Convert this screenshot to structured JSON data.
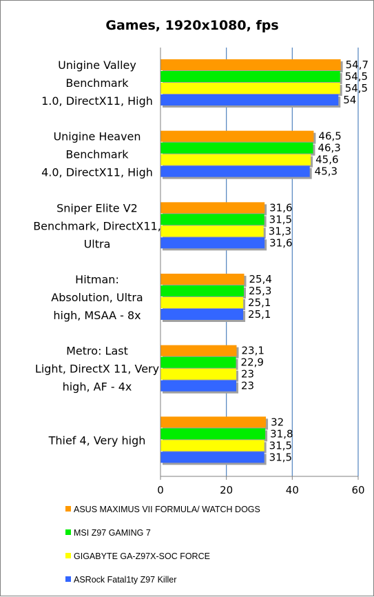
{
  "chart_data": {
    "type": "bar",
    "orientation": "horizontal",
    "title": "Games, 1920x1080, fps",
    "categories": [
      [
        "Unigine Valley",
        "Benchmark",
        "1.0, DirectX11, High"
      ],
      [
        "Unigine Heaven",
        "Benchmark",
        "4.0, DirectX11, High"
      ],
      [
        "Sniper Elite V2",
        "Benchmark, DirectX11,",
        "Ultra"
      ],
      [
        "Hitman:",
        "Absolution, Ultra",
        "high, MSAA - 8x"
      ],
      [
        "Metro: Last",
        "Light, DirectX 11, Very",
        "high, AF - 4x"
      ],
      [
        "Thief 4, Very high"
      ]
    ],
    "series": [
      {
        "name": "ASUS MAXIMUS VII FORMULA/ WATCH DOGS",
        "color": "#ff9900",
        "values": [
          54.7,
          46.5,
          31.6,
          25.4,
          23.1,
          32
        ],
        "labels": [
          "54,7",
          "46,5",
          "31,6",
          "25,4",
          "23,1",
          "32"
        ]
      },
      {
        "name": "MSI Z97 GAMING 7",
        "color": "#00ee00",
        "values": [
          54.5,
          46.3,
          31.5,
          25.3,
          22.9,
          31.8
        ],
        "labels": [
          "54,5",
          "46,3",
          "31,5",
          "25,3",
          "22,9",
          "31,8"
        ]
      },
      {
        "name": "GIGABYTE GA-Z97X-SOC FORCE",
        "color": "#ffff00",
        "values": [
          54.5,
          45.6,
          31.3,
          25.1,
          23,
          31.5
        ],
        "labels": [
          "54,5",
          "45,6",
          "31,3",
          "25,1",
          "23",
          "31,5"
        ]
      },
      {
        "name": "ASRock Fatal1ty Z97 Killer",
        "color": "#3366ff",
        "values": [
          54,
          45.3,
          31.6,
          25.1,
          23,
          31.5
        ],
        "labels": [
          "54",
          "45,3",
          "31,6",
          "25,1",
          "23",
          "31,5"
        ]
      }
    ],
    "xlim": [
      0,
      60
    ],
    "xticks": [
      "0",
      "20",
      "40",
      "60"
    ],
    "grid": true,
    "legend_position": "bottom"
  }
}
